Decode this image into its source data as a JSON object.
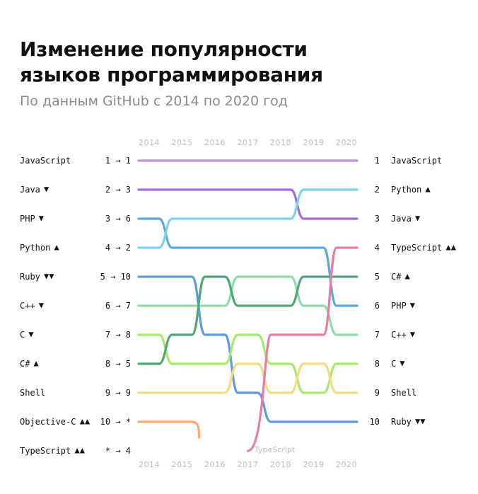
{
  "title_line1": "Изменение популярности",
  "title_line2": "языков программирования",
  "subtitle": "По данным GitHub с 2014 по 2020 год",
  "colors": {
    "up": "#7fcf8a",
    "down": "#f29bb7",
    "year": "#bdbdbd"
  },
  "chart_data": {
    "type": "line",
    "x": [
      "2014",
      "2015",
      "2016",
      "2017",
      "2018",
      "2019",
      "2020"
    ],
    "ylim": [
      1,
      11
    ],
    "grid": false,
    "series": [
      {
        "name": "JavaScript",
        "color": "#c58ee0",
        "values": [
          1,
          1,
          1,
          1,
          1,
          1,
          1
        ],
        "label_2014": "1 → 1",
        "trend_2014": "down0",
        "trend_2020": ""
      },
      {
        "name": "Java",
        "color": "#a66ad6",
        "values": [
          2,
          2,
          2,
          2,
          2,
          3,
          3
        ],
        "label_2014": "2 → 3"
      },
      {
        "name": "PHP",
        "color": "#5aaad6",
        "values": [
          3,
          4,
          4,
          4,
          4,
          4,
          6
        ],
        "label_2014": "3 → 6"
      },
      {
        "name": "Python",
        "color": "#7dd3ee",
        "values": [
          4,
          3,
          3,
          3,
          3,
          2,
          2
        ],
        "label_2014": "4 → 2"
      },
      {
        "name": "Ruby",
        "color": "#5b9be0",
        "values": [
          5,
          5,
          7,
          9,
          10,
          10,
          10
        ],
        "label_2014": "5 → 10"
      },
      {
        "name": "C++",
        "color": "#8fdcab",
        "values": [
          6,
          6,
          6,
          5,
          5,
          6,
          7
        ],
        "label_2014": "6 → 7"
      },
      {
        "name": "C",
        "color": "#a6ea6b",
        "values": [
          7,
          8,
          8,
          7,
          8,
          9,
          8
        ],
        "label_2014": "7 → 8"
      },
      {
        "name": "C#",
        "color": "#4fa777",
        "values": [
          8,
          7,
          5,
          6,
          6,
          5,
          5
        ],
        "label_2014": "8 → 5"
      },
      {
        "name": "Shell",
        "color": "#f3db7e",
        "values": [
          9,
          9,
          9,
          8,
          9,
          8,
          9
        ],
        "label_2014": "9 → 9"
      },
      {
        "name": "Objective-C",
        "color": "#f2ad6e",
        "values": [
          10,
          10,
          null,
          null,
          null,
          null,
          null
        ],
        "label_2014": "10 → *"
      },
      {
        "name": "TypeScript",
        "color": "#e87ca6",
        "values": [
          null,
          null,
          null,
          11,
          7,
          7,
          4
        ],
        "label_2014": "* → 4",
        "annotation": "TypeScript"
      }
    ],
    "left_labels": [
      {
        "name": "JavaScript",
        "arrows": "",
        "dir": ""
      },
      {
        "name": "Java",
        "arrows": "▼",
        "dir": "down"
      },
      {
        "name": "PHP",
        "arrows": "▼",
        "dir": "down"
      },
      {
        "name": "Python",
        "arrows": "▲",
        "dir": "up"
      },
      {
        "name": "Ruby",
        "arrows": "▼▼",
        "dir": "down"
      },
      {
        "name": "C++",
        "arrows": "▼",
        "dir": "down"
      },
      {
        "name": "C",
        "arrows": "▼",
        "dir": "down"
      },
      {
        "name": "C#",
        "arrows": "▲",
        "dir": "up"
      },
      {
        "name": "Shell",
        "arrows": "",
        "dir": ""
      },
      {
        "name": "Objective-C",
        "arrows": "▲▲",
        "dir": "up"
      },
      {
        "name": "TypeScript",
        "arrows": "▲▲",
        "dir": "up"
      }
    ],
    "rank_changes": [
      "1 → 1",
      "2 → 3",
      "3 → 6",
      "4 → 2",
      "5 → 10",
      "6 → 7",
      "7 → 8",
      "8 → 5",
      "9 → 9",
      "10 → *",
      "* → 4"
    ],
    "right_labels": [
      {
        "rank": "1",
        "name": "JavaScript",
        "arrows": "",
        "dir": ""
      },
      {
        "rank": "2",
        "name": "Python",
        "arrows": "▲",
        "dir": "up"
      },
      {
        "rank": "3",
        "name": "Java",
        "arrows": "▼",
        "dir": "down"
      },
      {
        "rank": "4",
        "name": "TypeScript",
        "arrows": "▲▲",
        "dir": "up"
      },
      {
        "rank": "5",
        "name": "C#",
        "arrows": "▲",
        "dir": "up"
      },
      {
        "rank": "6",
        "name": "PHP",
        "arrows": "▼",
        "dir": "down"
      },
      {
        "rank": "7",
        "name": "C++",
        "arrows": "▼",
        "dir": "down"
      },
      {
        "rank": "8",
        "name": "C",
        "arrows": "▼",
        "dir": "down"
      },
      {
        "rank": "9",
        "name": "Shell",
        "arrows": "",
        "dir": ""
      },
      {
        "rank": "10",
        "name": "Ruby",
        "arrows": "▼▼",
        "dir": "down"
      }
    ],
    "annotation": "TypeScript"
  }
}
